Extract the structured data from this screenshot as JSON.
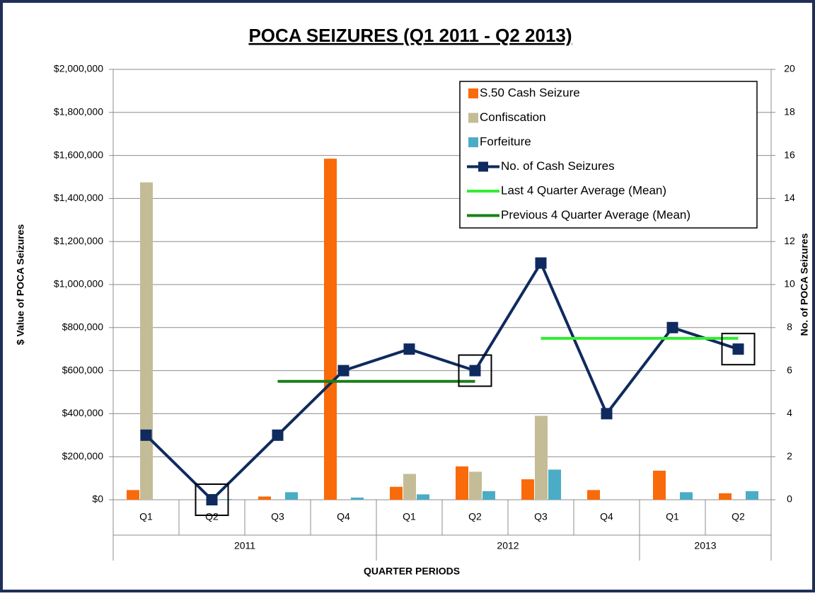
{
  "chart_data": {
    "type": "bar-line",
    "title": "POCA SEIZURES (Q1 2011 - Q2 2013)",
    "x_label": "QUARTER PERIODS",
    "y_label": "$ Value of POCA Seizures",
    "y2_label": "No. of POCA Seizures",
    "categories": [
      "Q1",
      "Q2",
      "Q3",
      "Q4",
      "Q1",
      "Q2",
      "Q3",
      "Q4",
      "Q1",
      "Q2"
    ],
    "category_groups": [
      "2011",
      "2011",
      "2011",
      "2011",
      "2012",
      "2012",
      "2012",
      "2012",
      "2013",
      "2013"
    ],
    "ylim": [
      0,
      2000000
    ],
    "yticks": [
      {
        "value": 0,
        "label": "$0"
      },
      {
        "value": 200000,
        "label": "$200,000"
      },
      {
        "value": 400000,
        "label": "$400,000"
      },
      {
        "value": 600000,
        "label": "$600,000"
      },
      {
        "value": 800000,
        "label": "$800,000"
      },
      {
        "value": 1000000,
        "label": "$1,000,000"
      },
      {
        "value": 1200000,
        "label": "$1,200,000"
      },
      {
        "value": 1400000,
        "label": "$1,400,000"
      },
      {
        "value": 1600000,
        "label": "$1,600,000"
      },
      {
        "value": 1800000,
        "label": "$1,800,000"
      },
      {
        "value": 2000000,
        "label": "$2,000,000"
      }
    ],
    "y2lim": [
      0,
      20
    ],
    "y2ticks": [
      0,
      2,
      4,
      6,
      8,
      10,
      12,
      14,
      16,
      18,
      20
    ],
    "grid": true,
    "legend": "upper right",
    "series": [
      {
        "name": "S.50 Cash Seizure",
        "kind": "bar",
        "color": "#f96a0a",
        "values": [
          45000,
          0,
          15000,
          1585000,
          60000,
          155000,
          95000,
          45000,
          135000,
          30000
        ]
      },
      {
        "name": "Confiscation",
        "kind": "bar",
        "color": "#c4bc96",
        "values": [
          1475000,
          0,
          0,
          0,
          120000,
          130000,
          390000,
          0,
          0,
          0
        ]
      },
      {
        "name": "Forfeiture",
        "kind": "bar",
        "color": "#4bacc6",
        "values": [
          0,
          3000,
          35000,
          10000,
          25000,
          40000,
          140000,
          0,
          35000,
          40000
        ]
      },
      {
        "name": "No. of Cash Seizures",
        "kind": "line",
        "axis": "y2",
        "color": "#0f2a5e",
        "marker": "square",
        "values": [
          3,
          0,
          3,
          6,
          7,
          6,
          11,
          4,
          8,
          7
        ]
      },
      {
        "name": "Last 4 Quarter Average (Mean)",
        "kind": "line",
        "axis": "y2",
        "color": "#33ee33",
        "values": [
          null,
          null,
          null,
          null,
          null,
          null,
          7.5,
          7.5,
          7.5,
          7.5
        ]
      },
      {
        "name": "Previous 4 Quarter Average (Mean)",
        "kind": "line",
        "axis": "y2",
        "color": "#1a7f1a",
        "values": [
          null,
          null,
          5.5,
          5.5,
          5.5,
          5.5,
          null,
          null,
          null,
          null
        ]
      }
    ]
  }
}
